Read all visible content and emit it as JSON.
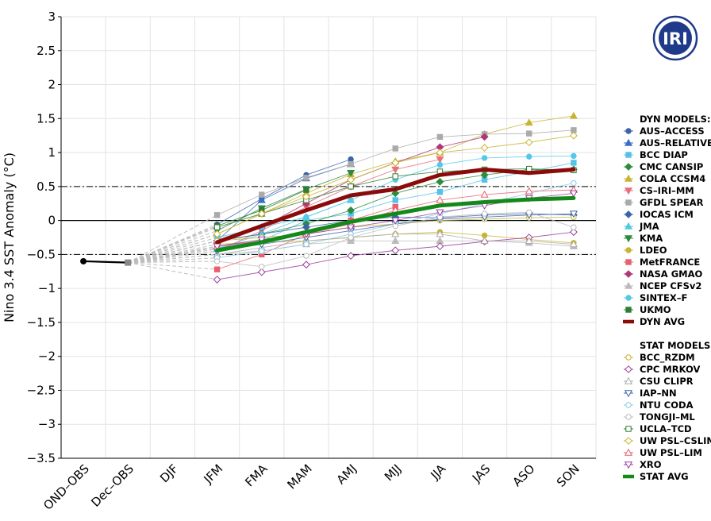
{
  "chart_data": {
    "type": "line",
    "title": "",
    "ylabel": "Nino 3.4 SST Anomaly (°C)",
    "xlabel": "",
    "ylim": [
      -3.5,
      3
    ],
    "yticks": [
      3,
      2.5,
      2,
      1.5,
      1,
      0.5,
      0,
      -0.5,
      -1,
      -1.5,
      -2,
      -2.5,
      -3,
      -3.5
    ],
    "ytick_labels": [
      "3",
      "2.5",
      "2",
      "1.5",
      "1",
      "0.5",
      "0",
      "−0.5",
      "−1",
      "−1.5",
      "−2",
      "−2.5",
      "−3",
      "−3.5"
    ],
    "categories": [
      "OND–OBS",
      "Dec–OBS",
      "DJF",
      "JFM",
      "FMA",
      "MAM",
      "AMJ",
      "MJJ",
      "JJA",
      "JAS",
      "ASO",
      "SON"
    ],
    "reference_lines": [
      0.5,
      -0.5
    ],
    "observed": {
      "name": "OBS",
      "color": "#000000",
      "values": [
        -0.6,
        -0.62
      ]
    },
    "dyn_header": "DYN MODELS:",
    "stat_header": "STAT MODELS:",
    "logo_text": "IRI",
    "dyn_series": [
      {
        "name": "AUS–ACCESS",
        "color": "#3b64a8",
        "marker": "circle",
        "filled": true,
        "values": [
          null,
          null,
          null,
          -0.06,
          0.32,
          0.67,
          0.9,
          null,
          null,
          null,
          null,
          null
        ]
      },
      {
        "name": "AUS–RELATIVE",
        "color": "#3b6fc7",
        "marker": "triangle-up",
        "filled": true,
        "values": [
          null,
          null,
          null,
          -0.3,
          0.3,
          0.62,
          0.83,
          null,
          null,
          null,
          null,
          null
        ]
      },
      {
        "name": "BCC DIAP",
        "color": "#55c1e8",
        "marker": "square",
        "filled": true,
        "values": [
          null,
          null,
          null,
          -0.4,
          -0.3,
          0.0,
          0.1,
          0.3,
          0.42,
          0.6,
          0.72,
          0.85
        ]
      },
      {
        "name": "CMC CANSIP",
        "color": "#2e8b3e",
        "marker": "diamond",
        "filled": true,
        "values": [
          null,
          null,
          null,
          -0.3,
          -0.2,
          -0.05,
          0.15,
          0.4,
          0.57,
          0.67,
          0.75,
          0.75
        ]
      },
      {
        "name": "COLA CCSM4",
        "color": "#c8b432",
        "marker": "triangle-up",
        "filled": true,
        "values": [
          null,
          null,
          null,
          -0.2,
          0.1,
          0.4,
          0.68,
          0.87,
          1.0,
          1.27,
          1.44,
          1.54
        ]
      },
      {
        "name": "CS–IRI–MM",
        "color": "#e8707a",
        "marker": "triangle-down",
        "filled": true,
        "values": [
          null,
          null,
          null,
          -0.45,
          -0.15,
          0.2,
          0.5,
          0.75,
          0.9,
          null,
          null,
          null
        ]
      },
      {
        "name": "GFDL SPEAR",
        "color": "#aaaaaa",
        "marker": "square",
        "filled": true,
        "values": [
          null,
          null,
          null,
          0.08,
          0.38,
          0.63,
          0.83,
          1.06,
          1.23,
          1.27,
          1.28,
          1.33
        ]
      },
      {
        "name": "IOCAS ICM",
        "color": "#3b64a8",
        "marker": "diamond",
        "filled": true,
        "values": [
          null,
          null,
          null,
          -0.3,
          -0.2,
          -0.1,
          0.0,
          0.05,
          0.04,
          0.08,
          0.1,
          0.08
        ]
      },
      {
        "name": "JMA",
        "color": "#55c8e0",
        "marker": "triangle-up",
        "filled": true,
        "values": [
          null,
          null,
          null,
          -0.42,
          -0.2,
          0.05,
          0.3,
          null,
          null,
          null,
          null,
          null
        ]
      },
      {
        "name": "KMA",
        "color": "#2e8b3e",
        "marker": "triangle-down",
        "filled": true,
        "values": [
          null,
          null,
          null,
          -0.15,
          0.18,
          0.46,
          0.7,
          null,
          null,
          null,
          null,
          null
        ]
      },
      {
        "name": "LDEO",
        "color": "#c8b432",
        "marker": "circle",
        "filled": true,
        "values": [
          null,
          null,
          null,
          -0.35,
          -0.32,
          -0.3,
          -0.25,
          -0.2,
          -0.17,
          -0.22,
          -0.28,
          -0.33
        ]
      },
      {
        "name": "MetFRANCE",
        "color": "#e86070",
        "marker": "square",
        "filled": true,
        "values": [
          null,
          null,
          null,
          -0.72,
          -0.5,
          -0.2,
          0.0,
          0.2,
          null,
          null,
          null,
          null
        ]
      },
      {
        "name": "NASA GMAO",
        "color": "#b03878",
        "marker": "diamond",
        "filled": true,
        "values": [
          null,
          null,
          null,
          -0.3,
          -0.1,
          0.25,
          0.6,
          0.85,
          1.08,
          1.23,
          null,
          null
        ]
      },
      {
        "name": "NCEP CFSv2",
        "color": "#bbbbbb",
        "marker": "triangle-up",
        "filled": true,
        "values": [
          null,
          null,
          null,
          -0.5,
          -0.45,
          -0.35,
          -0.3,
          -0.3,
          -0.3,
          -0.3,
          -0.33,
          -0.38
        ]
      },
      {
        "name": "SINTEX–F",
        "color": "#55c8e8",
        "marker": "circle",
        "filled": true,
        "values": [
          null,
          null,
          null,
          -0.25,
          -0.1,
          0.05,
          0.3,
          0.6,
          0.82,
          0.92,
          0.94,
          0.95
        ]
      },
      {
        "name": "UKMO",
        "color": "#2e7d32",
        "marker": "square",
        "filled": true,
        "values": [
          null,
          null,
          null,
          -0.08,
          0.15,
          0.45,
          null,
          null,
          null,
          null,
          null,
          null
        ]
      }
    ],
    "dyn_avg": {
      "name": "DYN AVG",
      "color": "#8b0a0a",
      "values": [
        null,
        null,
        null,
        -0.32,
        -0.08,
        0.15,
        0.37,
        0.46,
        0.67,
        0.75,
        0.7,
        0.75
      ]
    },
    "stat_series": [
      {
        "name": "BCC_RZDM",
        "color": "#c8b432",
        "marker": "circle",
        "filled": false,
        "values": [
          null,
          null,
          null,
          -0.3,
          -0.25,
          -0.2,
          -0.1,
          -0.05,
          0.0,
          0.02,
          0.04,
          0.05
        ]
      },
      {
        "name": "CPC MRKOV",
        "color": "#9b3d9b",
        "marker": "diamond",
        "filled": false,
        "values": [
          null,
          null,
          null,
          -0.87,
          -0.76,
          -0.65,
          -0.52,
          -0.44,
          -0.38,
          -0.31,
          -0.25,
          -0.17
        ]
      },
      {
        "name": "CSU CLIPR",
        "color": "#aaaaaa",
        "marker": "triangle-up",
        "filled": false,
        "values": [
          null,
          null,
          null,
          -0.5,
          -0.4,
          -0.3,
          -0.25,
          -0.2,
          -0.2,
          -0.3,
          -0.3,
          -0.35
        ]
      },
      {
        "name": "IAP–NN",
        "color": "#3b64a8",
        "marker": "triangle-down",
        "filled": false,
        "values": [
          null,
          null,
          null,
          -0.45,
          -0.35,
          -0.25,
          -0.15,
          -0.05,
          0.02,
          0.05,
          0.08,
          0.1
        ]
      },
      {
        "name": "NTU CODA",
        "color": "#88c8e8",
        "marker": "circle",
        "filled": false,
        "values": [
          null,
          null,
          null,
          -0.55,
          -0.45,
          -0.35,
          -0.2,
          -0.05,
          0.1,
          0.25,
          0.4,
          0.55
        ]
      },
      {
        "name": "TONGJI–ML",
        "color": "#bbbbbb",
        "marker": "circle",
        "filled": false,
        "values": [
          null,
          null,
          null,
          -0.6,
          -0.68,
          -0.52,
          -0.25,
          -0.08,
          0.05,
          0.1,
          0.12,
          -0.1
        ]
      },
      {
        "name": "UCLA–TCD",
        "color": "#2e7d32",
        "marker": "square",
        "filled": false,
        "values": [
          null,
          null,
          null,
          -0.1,
          0.1,
          0.3,
          0.5,
          0.65,
          0.72,
          0.75,
          0.76,
          0.74
        ]
      },
      {
        "name": "UW PSL–CSLIM",
        "color": "#c8b432",
        "marker": "diamond",
        "filled": false,
        "values": [
          null,
          null,
          null,
          -0.2,
          0.1,
          0.35,
          0.6,
          0.85,
          1.0,
          1.07,
          1.15,
          1.25
        ]
      },
      {
        "name": "UW PSL–LIM",
        "color": "#e86070",
        "marker": "triangle-up",
        "filled": false,
        "values": [
          null,
          null,
          null,
          -0.38,
          -0.3,
          -0.2,
          -0.05,
          0.15,
          0.3,
          0.38,
          0.43,
          0.45
        ]
      },
      {
        "name": "XRO",
        "color": "#9b3d9b",
        "marker": "triangle-down",
        "filled": false,
        "values": [
          null,
          null,
          null,
          -0.38,
          -0.28,
          -0.2,
          -0.1,
          0.0,
          0.12,
          0.22,
          0.33,
          0.4
        ]
      }
    ],
    "stat_avg": {
      "name": "STAT AVG",
      "color": "#14891a",
      "values": [
        null,
        null,
        null,
        -0.44,
        -0.32,
        -0.17,
        -0.02,
        0.1,
        0.22,
        0.27,
        0.31,
        0.33
      ]
    }
  }
}
